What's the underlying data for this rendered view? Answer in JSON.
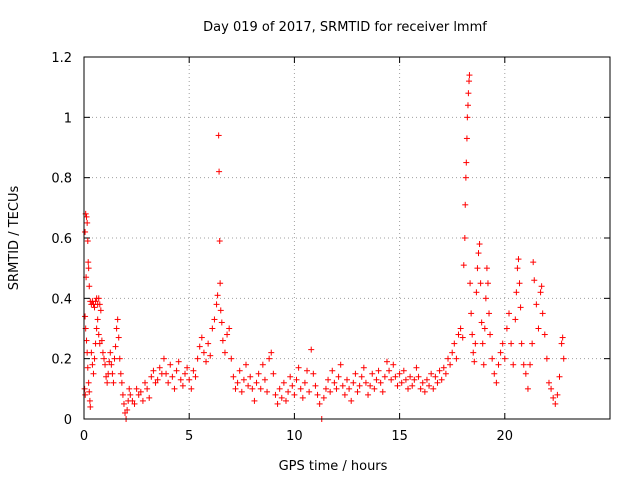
{
  "chart_data": {
    "type": "scatter",
    "title": "Day 019 of 2017, SRMTID for receiver lmmf",
    "xlabel": "GPS time / hours",
    "ylabel": "SRMTID / TECUs",
    "xlim": [
      0,
      25
    ],
    "ylim": [
      0,
      1.2
    ],
    "xticks": [
      0,
      5,
      10,
      15,
      20
    ],
    "xtick_labels": [
      "0",
      "5",
      "10",
      "15",
      "20"
    ],
    "yticks": [
      0,
      0.2,
      0.4,
      0.6,
      0.8,
      1.0,
      1.2
    ],
    "ytick_labels": [
      "0",
      "0.2",
      "0.4",
      "0.6",
      "0.8",
      "1",
      "1.2"
    ],
    "grid": true,
    "marker": "+",
    "color": "#ff0000",
    "series": [
      {
        "name": "SRMTID",
        "points": [
          [
            0.05,
            0.62
          ],
          [
            0.08,
            0.68
          ],
          [
            0.12,
            0.67
          ],
          [
            0.15,
            0.65
          ],
          [
            0.18,
            0.59
          ],
          [
            0.2,
            0.52
          ],
          [
            0.22,
            0.5
          ],
          [
            0.1,
            0.47
          ],
          [
            0.05,
            0.34
          ],
          [
            0.08,
            0.3
          ],
          [
            0.12,
            0.26
          ],
          [
            0.15,
            0.22
          ],
          [
            0.18,
            0.17
          ],
          [
            0.22,
            0.12
          ],
          [
            0.25,
            0.09
          ],
          [
            0.28,
            0.06
          ],
          [
            0.3,
            0.04
          ],
          [
            0.03,
            0.1
          ],
          [
            0.06,
            0.08
          ],
          [
            0.25,
            0.44
          ],
          [
            0.3,
            0.39
          ],
          [
            0.35,
            0.38
          ],
          [
            0.4,
            0.39
          ],
          [
            0.45,
            0.38
          ],
          [
            0.5,
            0.37
          ],
          [
            0.55,
            0.39
          ],
          [
            0.6,
            0.4
          ],
          [
            0.65,
            0.38
          ],
          [
            0.7,
            0.4
          ],
          [
            0.75,
            0.38
          ],
          [
            0.8,
            0.36
          ],
          [
            0.35,
            0.22
          ],
          [
            0.4,
            0.18
          ],
          [
            0.45,
            0.15
          ],
          [
            0.5,
            0.2
          ],
          [
            0.55,
            0.25
          ],
          [
            0.6,
            0.3
          ],
          [
            0.65,
            0.33
          ],
          [
            0.7,
            0.28
          ],
          [
            0.75,
            0.25
          ],
          [
            0.85,
            0.26
          ],
          [
            0.9,
            0.22
          ],
          [
            0.95,
            0.2
          ],
          [
            1.0,
            0.18
          ],
          [
            1.05,
            0.14
          ],
          [
            1.1,
            0.12
          ],
          [
            1.15,
            0.15
          ],
          [
            1.2,
            0.19
          ],
          [
            1.25,
            0.22
          ],
          [
            1.3,
            0.18
          ],
          [
            1.35,
            0.15
          ],
          [
            1.4,
            0.12
          ],
          [
            1.45,
            0.2
          ],
          [
            1.5,
            0.24
          ],
          [
            1.55,
            0.3
          ],
          [
            1.6,
            0.33
          ],
          [
            1.65,
            0.27
          ],
          [
            1.7,
            0.2
          ],
          [
            1.75,
            0.15
          ],
          [
            1.8,
            0.12
          ],
          [
            1.85,
            0.08
          ],
          [
            1.9,
            0.05
          ],
          [
            1.95,
            0.02
          ],
          [
            2.0,
            0.0
          ],
          [
            2.05,
            0.03
          ],
          [
            2.1,
            0.06
          ],
          [
            2.15,
            0.1
          ],
          [
            2.2,
            0.08
          ],
          [
            2.3,
            0.06
          ],
          [
            2.4,
            0.05
          ],
          [
            2.5,
            0.1
          ],
          [
            2.6,
            0.08
          ],
          [
            2.7,
            0.09
          ],
          [
            2.8,
            0.06
          ],
          [
            2.9,
            0.12
          ],
          [
            3.0,
            0.1
          ],
          [
            3.1,
            0.07
          ],
          [
            3.2,
            0.14
          ],
          [
            3.3,
            0.16
          ],
          [
            3.4,
            0.12
          ],
          [
            3.5,
            0.13
          ],
          [
            3.6,
            0.17
          ],
          [
            3.7,
            0.15
          ],
          [
            3.8,
            0.2
          ],
          [
            3.9,
            0.15
          ],
          [
            4.0,
            0.12
          ],
          [
            4.1,
            0.18
          ],
          [
            4.2,
            0.14
          ],
          [
            4.3,
            0.1
          ],
          [
            4.4,
            0.16
          ],
          [
            4.5,
            0.19
          ],
          [
            4.6,
            0.13
          ],
          [
            4.7,
            0.11
          ],
          [
            4.8,
            0.15
          ],
          [
            4.9,
            0.17
          ],
          [
            5.0,
            0.13
          ],
          [
            5.1,
            0.1
          ],
          [
            5.2,
            0.16
          ],
          [
            5.3,
            0.14
          ],
          [
            5.4,
            0.2
          ],
          [
            5.5,
            0.24
          ],
          [
            5.6,
            0.27
          ],
          [
            5.7,
            0.22
          ],
          [
            5.8,
            0.19
          ],
          [
            5.9,
            0.25
          ],
          [
            6.0,
            0.21
          ],
          [
            6.1,
            0.3
          ],
          [
            6.2,
            0.33
          ],
          [
            6.3,
            0.38
          ],
          [
            6.35,
            0.41
          ],
          [
            6.4,
            0.94
          ],
          [
            6.42,
            0.82
          ],
          [
            6.45,
            0.59
          ],
          [
            6.47,
            0.45
          ],
          [
            6.5,
            0.36
          ],
          [
            6.55,
            0.32
          ],
          [
            6.6,
            0.26
          ],
          [
            6.7,
            0.22
          ],
          [
            6.8,
            0.28
          ],
          [
            6.9,
            0.3
          ],
          [
            7.0,
            0.2
          ],
          [
            7.1,
            0.14
          ],
          [
            7.2,
            0.1
          ],
          [
            7.3,
            0.12
          ],
          [
            7.4,
            0.16
          ],
          [
            7.5,
            0.09
          ],
          [
            7.6,
            0.13
          ],
          [
            7.7,
            0.18
          ],
          [
            7.8,
            0.11
          ],
          [
            7.9,
            0.14
          ],
          [
            8.0,
            0.1
          ],
          [
            8.1,
            0.06
          ],
          [
            8.2,
            0.12
          ],
          [
            8.3,
            0.15
          ],
          [
            8.4,
            0.1
          ],
          [
            8.5,
            0.18
          ],
          [
            8.6,
            0.13
          ],
          [
            8.7,
            0.09
          ],
          [
            8.8,
            0.2
          ],
          [
            8.9,
            0.22
          ],
          [
            9.0,
            0.15
          ],
          [
            9.1,
            0.08
          ],
          [
            9.2,
            0.05
          ],
          [
            9.3,
            0.1
          ],
          [
            9.4,
            0.07
          ],
          [
            9.5,
            0.12
          ],
          [
            9.6,
            0.06
          ],
          [
            9.7,
            0.09
          ],
          [
            9.8,
            0.14
          ],
          [
            9.9,
            0.11
          ],
          [
            10.0,
            0.08
          ],
          [
            10.1,
            0.13
          ],
          [
            10.2,
            0.17
          ],
          [
            10.3,
            0.1
          ],
          [
            10.4,
            0.07
          ],
          [
            10.5,
            0.12
          ],
          [
            10.6,
            0.16
          ],
          [
            10.7,
            0.09
          ],
          [
            10.8,
            0.23
          ],
          [
            10.9,
            0.15
          ],
          [
            11.0,
            0.11
          ],
          [
            11.1,
            0.08
          ],
          [
            11.2,
            0.05
          ],
          [
            11.3,
            0.0
          ],
          [
            11.4,
            0.07
          ],
          [
            11.5,
            0.1
          ],
          [
            11.6,
            0.13
          ],
          [
            11.7,
            0.09
          ],
          [
            11.8,
            0.16
          ],
          [
            11.9,
            0.12
          ],
          [
            12.0,
            0.1
          ],
          [
            12.1,
            0.14
          ],
          [
            12.2,
            0.18
          ],
          [
            12.3,
            0.11
          ],
          [
            12.4,
            0.08
          ],
          [
            12.5,
            0.13
          ],
          [
            12.6,
            0.1
          ],
          [
            12.7,
            0.06
          ],
          [
            12.8,
            0.12
          ],
          [
            12.9,
            0.15
          ],
          [
            13.0,
            0.09
          ],
          [
            13.1,
            0.11
          ],
          [
            13.2,
            0.14
          ],
          [
            13.3,
            0.17
          ],
          [
            13.4,
            0.12
          ],
          [
            13.5,
            0.08
          ],
          [
            13.6,
            0.11
          ],
          [
            13.7,
            0.15
          ],
          [
            13.8,
            0.1
          ],
          [
            13.9,
            0.13
          ],
          [
            14.0,
            0.16
          ],
          [
            14.1,
            0.12
          ],
          [
            14.2,
            0.09
          ],
          [
            14.3,
            0.14
          ],
          [
            14.4,
            0.19
          ],
          [
            14.5,
            0.16
          ],
          [
            14.6,
            0.13
          ],
          [
            14.7,
            0.18
          ],
          [
            14.8,
            0.14
          ],
          [
            14.9,
            0.11
          ],
          [
            15.0,
            0.15
          ],
          [
            15.1,
            0.12
          ],
          [
            15.2,
            0.16
          ],
          [
            15.3,
            0.13
          ],
          [
            15.4,
            0.1
          ],
          [
            15.5,
            0.14
          ],
          [
            15.6,
            0.11
          ],
          [
            15.7,
            0.13
          ],
          [
            15.8,
            0.17
          ],
          [
            15.9,
            0.14
          ],
          [
            16.0,
            0.1
          ],
          [
            16.1,
            0.12
          ],
          [
            16.2,
            0.09
          ],
          [
            16.3,
            0.13
          ],
          [
            16.4,
            0.11
          ],
          [
            16.5,
            0.15
          ],
          [
            16.6,
            0.1
          ],
          [
            16.7,
            0.14
          ],
          [
            16.8,
            0.12
          ],
          [
            16.9,
            0.16
          ],
          [
            17.0,
            0.13
          ],
          [
            17.1,
            0.17
          ],
          [
            17.2,
            0.15
          ],
          [
            17.3,
            0.2
          ],
          [
            17.4,
            0.18
          ],
          [
            17.5,
            0.22
          ],
          [
            17.6,
            0.25
          ],
          [
            17.7,
            0.2
          ],
          [
            17.8,
            0.28
          ],
          [
            17.9,
            0.3
          ],
          [
            18.0,
            0.27
          ],
          [
            18.05,
            0.51
          ],
          [
            18.1,
            0.6
          ],
          [
            18.12,
            0.71
          ],
          [
            18.15,
            0.8
          ],
          [
            18.17,
            0.85
          ],
          [
            18.2,
            0.93
          ],
          [
            18.22,
            1.0
          ],
          [
            18.25,
            1.04
          ],
          [
            18.27,
            1.08
          ],
          [
            18.3,
            1.12
          ],
          [
            18.32,
            1.14
          ],
          [
            18.35,
            0.45
          ],
          [
            18.4,
            0.35
          ],
          [
            18.45,
            0.28
          ],
          [
            18.5,
            0.22
          ],
          [
            18.55,
            0.19
          ],
          [
            18.6,
            0.25
          ],
          [
            18.65,
            0.42
          ],
          [
            18.7,
            0.5
          ],
          [
            18.75,
            0.55
          ],
          [
            18.8,
            0.58
          ],
          [
            18.85,
            0.45
          ],
          [
            18.9,
            0.32
          ],
          [
            18.95,
            0.25
          ],
          [
            19.0,
            0.18
          ],
          [
            19.05,
            0.3
          ],
          [
            19.1,
            0.4
          ],
          [
            19.15,
            0.5
          ],
          [
            19.2,
            0.45
          ],
          [
            19.25,
            0.35
          ],
          [
            19.3,
            0.28
          ],
          [
            19.4,
            0.2
          ],
          [
            19.5,
            0.15
          ],
          [
            19.6,
            0.12
          ],
          [
            19.7,
            0.18
          ],
          [
            19.8,
            0.22
          ],
          [
            19.9,
            0.25
          ],
          [
            20.0,
            0.2
          ],
          [
            20.1,
            0.3
          ],
          [
            20.2,
            0.35
          ],
          [
            20.3,
            0.25
          ],
          [
            20.4,
            0.18
          ],
          [
            20.5,
            0.33
          ],
          [
            20.55,
            0.42
          ],
          [
            20.6,
            0.5
          ],
          [
            20.65,
            0.53
          ],
          [
            20.7,
            0.45
          ],
          [
            20.75,
            0.37
          ],
          [
            20.8,
            0.25
          ],
          [
            20.9,
            0.18
          ],
          [
            21.0,
            0.15
          ],
          [
            21.1,
            0.1
          ],
          [
            21.2,
            0.18
          ],
          [
            21.3,
            0.25
          ],
          [
            21.35,
            0.52
          ],
          [
            21.4,
            0.46
          ],
          [
            21.5,
            0.38
          ],
          [
            21.6,
            0.3
          ],
          [
            21.7,
            0.42
          ],
          [
            21.75,
            0.44
          ],
          [
            21.8,
            0.35
          ],
          [
            21.9,
            0.28
          ],
          [
            22.0,
            0.2
          ],
          [
            22.1,
            0.12
          ],
          [
            22.2,
            0.1
          ],
          [
            22.3,
            0.07
          ],
          [
            22.4,
            0.05
          ],
          [
            22.5,
            0.08
          ],
          [
            22.6,
            0.14
          ],
          [
            22.7,
            0.25
          ],
          [
            22.75,
            0.27
          ],
          [
            22.8,
            0.2
          ]
        ]
      }
    ]
  }
}
